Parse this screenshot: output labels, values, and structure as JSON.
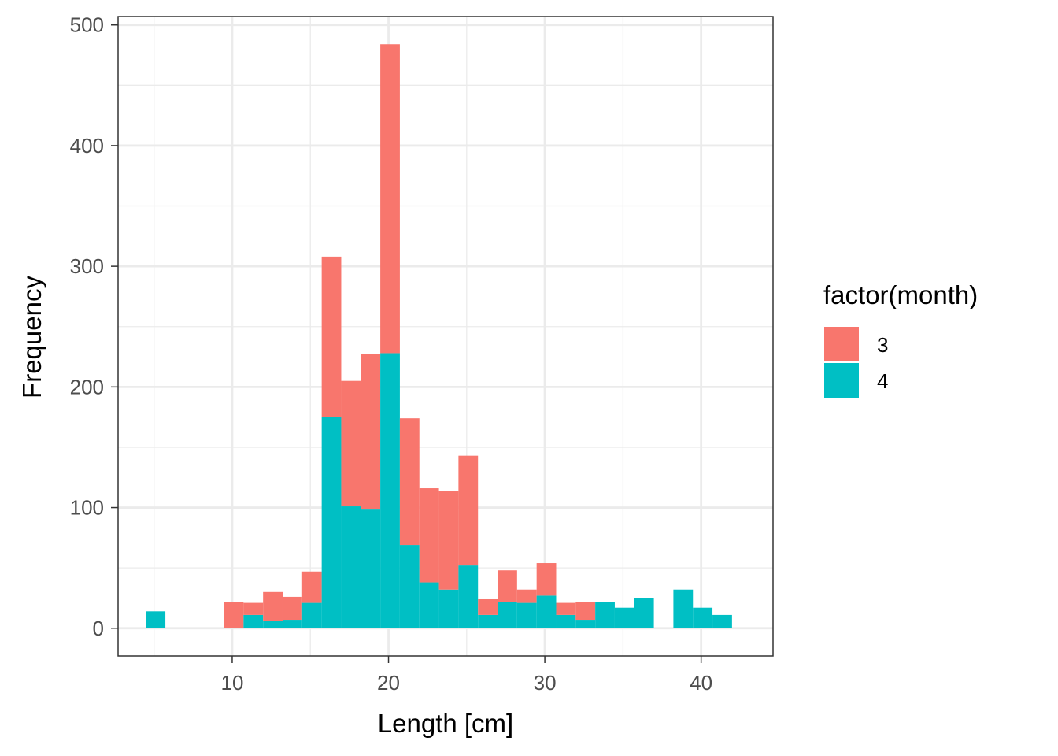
{
  "chart_data": {
    "type": "bar",
    "stacked": true,
    "xlabel": "Length [cm]",
    "ylabel": "Frequency",
    "xlim": [
      2.7,
      44.6
    ],
    "ylim": [
      -23,
      507
    ],
    "x_ticks": [
      10,
      20,
      30,
      40
    ],
    "y_ticks": [
      0,
      100,
      200,
      300,
      400,
      500
    ],
    "grid": true,
    "bin_width": 1.25,
    "bin_centers": [
      5.1,
      10.1,
      11.35,
      12.6,
      13.85,
      15.1,
      16.35,
      17.6,
      18.85,
      20.1,
      21.35,
      22.6,
      23.85,
      25.1,
      26.35,
      27.6,
      28.85,
      30.1,
      31.35,
      32.6,
      33.85,
      35.1,
      36.35,
      38.85,
      40.1,
      41.35
    ],
    "series": [
      {
        "name": "4",
        "color": "#00BFC4",
        "values": [
          14,
          0,
          11,
          6,
          7,
          21,
          175,
          101,
          99,
          228,
          69,
          38,
          32,
          52,
          11,
          22,
          21,
          27,
          11,
          7,
          22,
          17,
          25,
          32,
          17,
          11
        ]
      },
      {
        "name": "3",
        "color": "#F8766D",
        "values": [
          0,
          22,
          10,
          24,
          19,
          26,
          133,
          104,
          128,
          256,
          105,
          78,
          82,
          91,
          13,
          26,
          11,
          27,
          10,
          15,
          0,
          0,
          0,
          0,
          0,
          0
        ]
      }
    ],
    "legend": {
      "title": "factor(month)",
      "position": "right",
      "entries": [
        {
          "label": "3",
          "color": "#F8766D"
        },
        {
          "label": "4",
          "color": "#00BFC4"
        }
      ]
    }
  }
}
